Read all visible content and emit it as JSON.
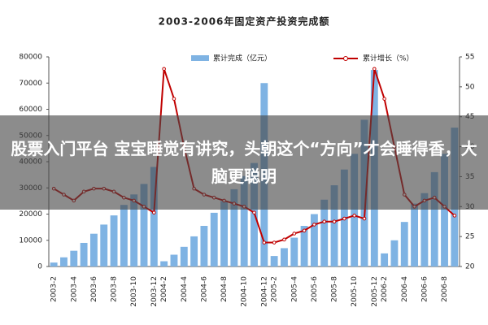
{
  "chart_data": {
    "type": "bar-line",
    "title": "2003-2006年固定资产投资完成额",
    "categories": [
      "2003-2",
      null,
      "2003-4",
      null,
      "2003-6",
      null,
      "2003-8",
      null,
      "2003-10",
      null,
      "2003-12",
      "2004-2",
      null,
      "2004-4",
      null,
      "2004-6",
      null,
      "2004-8",
      null,
      "2004-10",
      null,
      "2004-12",
      "2005-2",
      null,
      "2005-4",
      null,
      "2005-6",
      null,
      "2005-8",
      null,
      "2005-10",
      null,
      "2005-12",
      "2006-2",
      null,
      "2006-4",
      null,
      "2006-6",
      null,
      "2006-8",
      null
    ],
    "series": [
      {
        "name": "累计完成（亿元）",
        "color": "#7fb3e3",
        "values": [
          1500,
          3500,
          6000,
          9000,
          12500,
          16000,
          19500,
          23500,
          27500,
          31500,
          38000,
          2000,
          4500,
          7500,
          11500,
          15500,
          20500,
          25000,
          29500,
          34500,
          39500,
          70000,
          4000,
          7000,
          11000,
          15500,
          20000,
          25500,
          31000,
          37000,
          43000,
          56000,
          75000,
          5000,
          10000,
          17000,
          24000,
          28000,
          36000,
          43000,
          53000
        ]
      },
      {
        "name": "累计增长（%）",
        "color": "#c00000",
        "axis": "y2",
        "values": [
          33,
          32,
          31,
          32.5,
          33,
          33,
          32.5,
          31.5,
          31,
          30,
          29,
          53,
          48,
          40,
          33,
          32,
          31.5,
          31,
          30.5,
          30,
          29,
          24,
          24,
          24.5,
          25.5,
          26,
          27,
          27.5,
          27.5,
          28,
          28.5,
          28,
          53,
          48,
          40,
          32,
          30,
          31,
          31.5,
          30,
          28.5
        ]
      }
    ],
    "ylim": [
      0,
      80000
    ],
    "yticks": [
      0,
      10000,
      20000,
      30000,
      40000,
      50000,
      60000,
      70000,
      80000
    ],
    "y2lim": [
      20,
      55
    ],
    "y2ticks": [
      20,
      25,
      30,
      35,
      40,
      45,
      50,
      55
    ]
  },
  "caption": "股票入门平台 宝宝睡觉有讲究，头朝这个“方向”才会睡得香，大脑更聪明"
}
